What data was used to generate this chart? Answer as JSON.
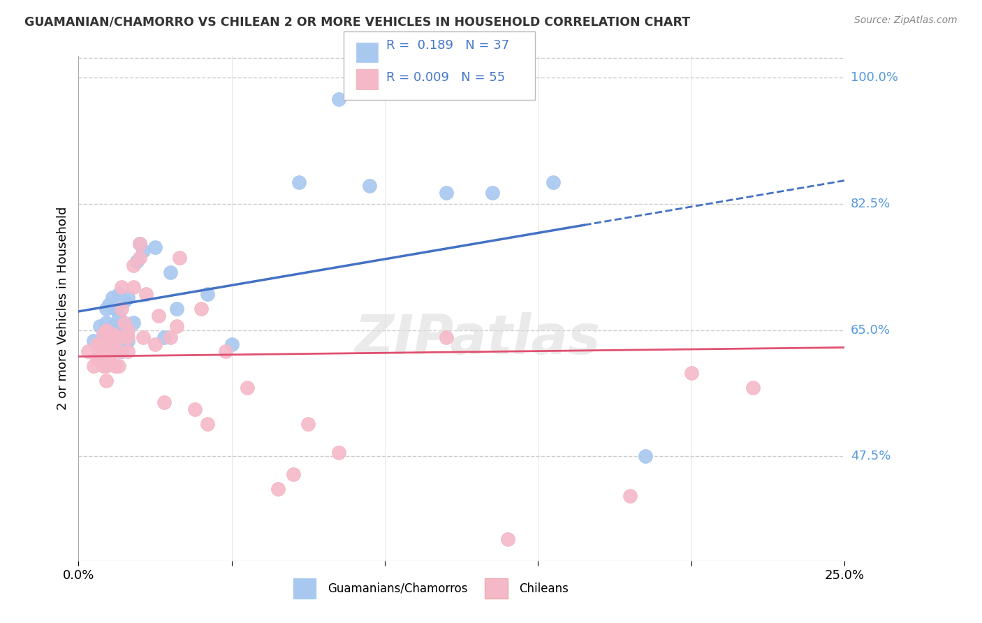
{
  "title": "GUAMANIAN/CHAMORRO VS CHILEAN 2 OR MORE VEHICLES IN HOUSEHOLD CORRELATION CHART",
  "source": "Source: ZipAtlas.com",
  "xlabel_blue": "Guamanians/Chamorros",
  "xlabel_pink": "Chileans",
  "ylabel": "2 or more Vehicles in Household",
  "xlim": [
    0.0,
    0.25
  ],
  "ylim": [
    0.33,
    1.03
  ],
  "xticks": [
    0.0,
    0.05,
    0.1,
    0.15,
    0.2,
    0.25
  ],
  "xticklabels": [
    "0.0%",
    "",
    "",
    "",
    "",
    "25.0%"
  ],
  "yticks": [
    0.475,
    0.65,
    0.825,
    1.0
  ],
  "yticklabels": [
    "47.5%",
    "65.0%",
    "82.5%",
    "100.0%"
  ],
  "legend_r_blue": "0.189",
  "legend_n_blue": "37",
  "legend_r_pink": "0.009",
  "legend_n_pink": "55",
  "blue_color": "#A8C8F0",
  "pink_color": "#F5B8C8",
  "line_blue_color": "#4472C4",
  "line_pink_color": "#E05070",
  "watermark_text": "ZIPatlas",
  "blue_x": [
    0.005,
    0.007,
    0.008,
    0.009,
    0.009,
    0.01,
    0.01,
    0.011,
    0.011,
    0.012,
    0.012,
    0.013,
    0.013,
    0.013,
    0.014,
    0.014,
    0.015,
    0.015,
    0.016,
    0.016,
    0.018,
    0.019,
    0.02,
    0.021,
    0.025,
    0.028,
    0.03,
    0.032,
    0.042,
    0.05,
    0.072,
    0.085,
    0.095,
    0.12,
    0.135,
    0.155,
    0.185
  ],
  "blue_y": [
    0.635,
    0.655,
    0.64,
    0.66,
    0.68,
    0.64,
    0.685,
    0.655,
    0.695,
    0.64,
    0.68,
    0.65,
    0.67,
    0.7,
    0.62,
    0.66,
    0.645,
    0.69,
    0.635,
    0.695,
    0.66,
    0.745,
    0.77,
    0.76,
    0.765,
    0.64,
    0.73,
    0.68,
    0.7,
    0.63,
    0.855,
    0.97,
    0.85,
    0.84,
    0.84,
    0.855,
    0.475
  ],
  "pink_x": [
    0.003,
    0.005,
    0.006,
    0.006,
    0.007,
    0.007,
    0.008,
    0.008,
    0.008,
    0.009,
    0.009,
    0.009,
    0.009,
    0.01,
    0.01,
    0.01,
    0.011,
    0.011,
    0.012,
    0.012,
    0.013,
    0.013,
    0.013,
    0.014,
    0.014,
    0.015,
    0.016,
    0.016,
    0.016,
    0.018,
    0.018,
    0.02,
    0.02,
    0.021,
    0.022,
    0.025,
    0.026,
    0.028,
    0.03,
    0.032,
    0.033,
    0.038,
    0.04,
    0.042,
    0.048,
    0.055,
    0.065,
    0.07,
    0.075,
    0.085,
    0.12,
    0.14,
    0.18,
    0.2,
    0.22
  ],
  "pink_y": [
    0.62,
    0.6,
    0.61,
    0.63,
    0.61,
    0.63,
    0.6,
    0.62,
    0.645,
    0.58,
    0.6,
    0.63,
    0.65,
    0.61,
    0.645,
    0.63,
    0.62,
    0.645,
    0.6,
    0.64,
    0.6,
    0.62,
    0.64,
    0.68,
    0.71,
    0.66,
    0.62,
    0.64,
    0.65,
    0.71,
    0.74,
    0.75,
    0.77,
    0.64,
    0.7,
    0.63,
    0.67,
    0.55,
    0.64,
    0.655,
    0.75,
    0.54,
    0.68,
    0.52,
    0.62,
    0.57,
    0.43,
    0.45,
    0.52,
    0.48,
    0.64,
    0.36,
    0.42,
    0.59,
    0.57
  ],
  "background_color": "#FFFFFF",
  "grid_color": "#CCCCCC",
  "title_color": "#333333",
  "right_label_color": "#5599DD"
}
